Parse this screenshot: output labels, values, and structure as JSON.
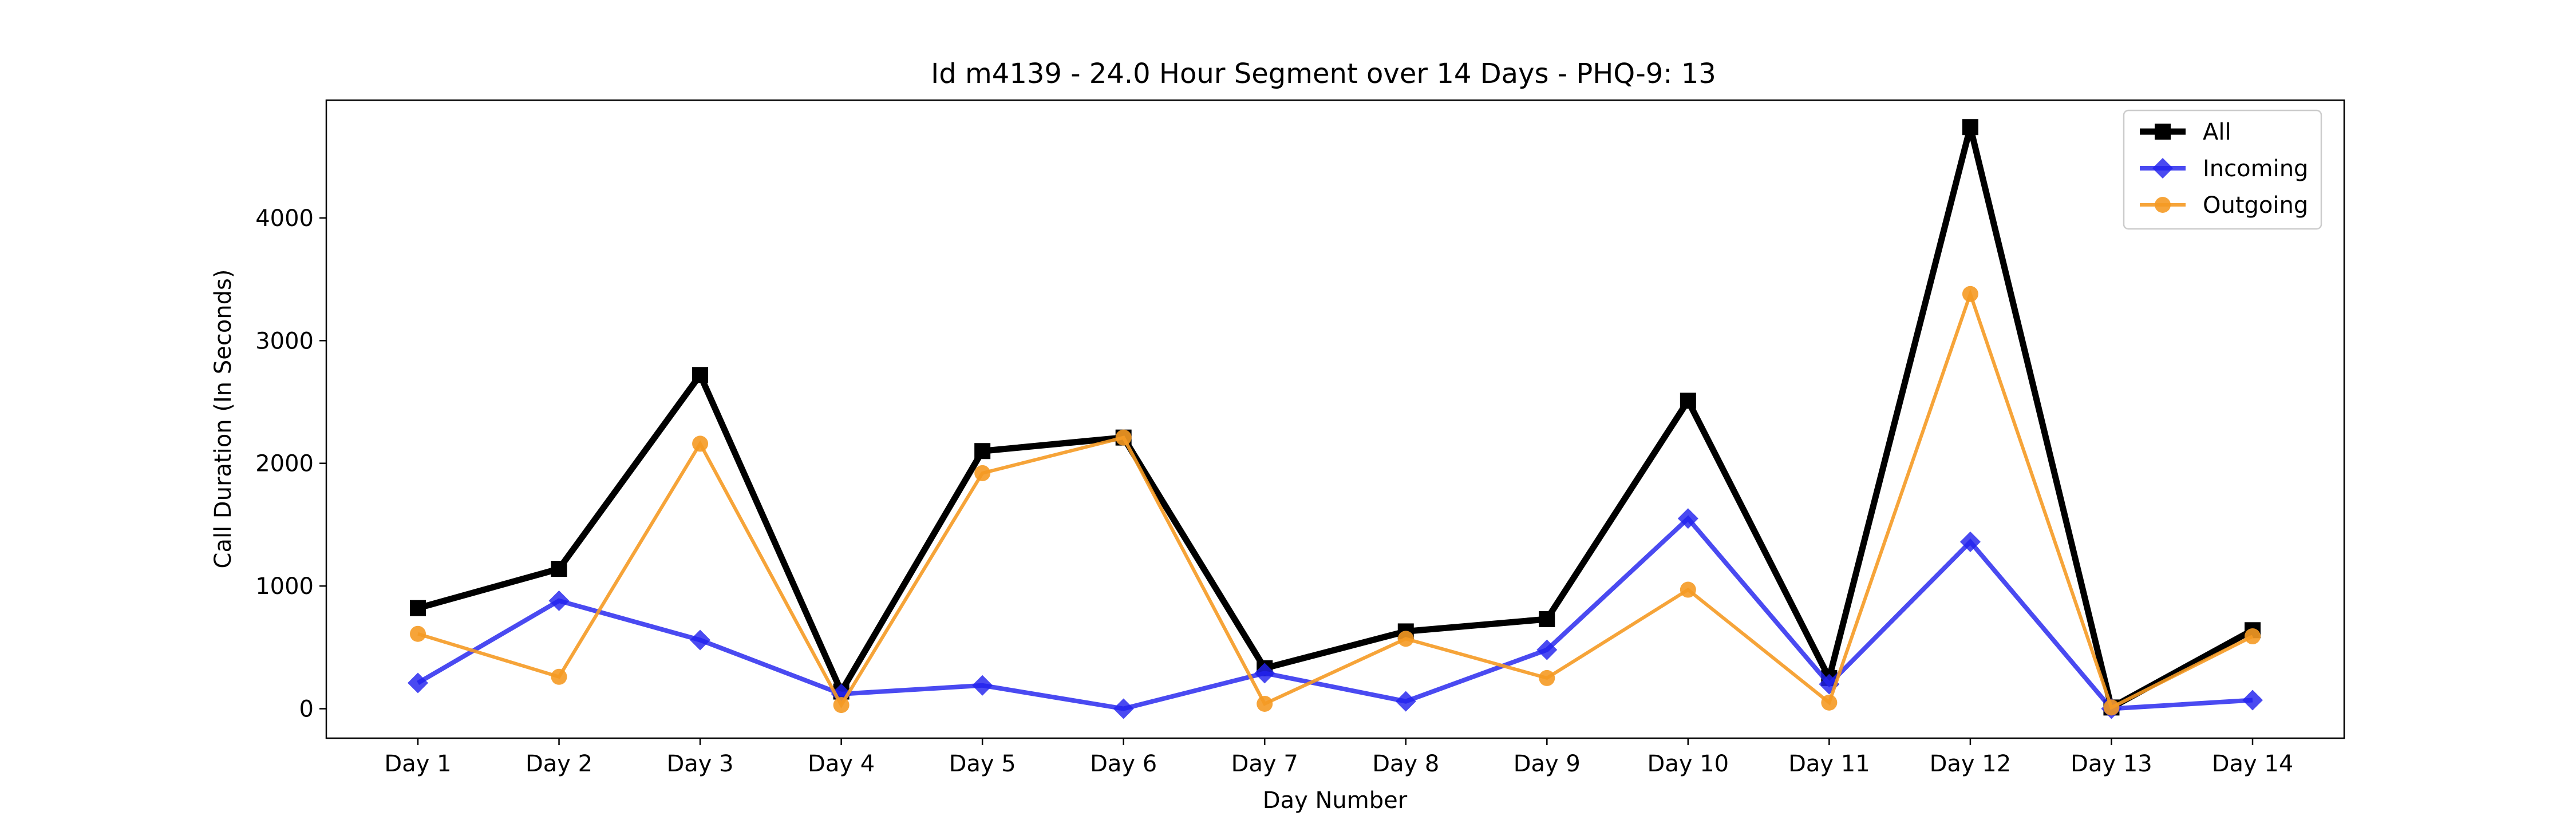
{
  "chart_data": {
    "type": "line",
    "title": "Id m4139 - 24.0 Hour Segment over 14 Days - PHQ-9: 13",
    "xlabel": "Day Number",
    "ylabel": "Call Duration (In Seconds)",
    "categories": [
      "Day 1",
      "Day 2",
      "Day 3",
      "Day 4",
      "Day 5",
      "Day 6",
      "Day 7",
      "Day 8",
      "Day 9",
      "Day 10",
      "Day 11",
      "Day 12",
      "Day 13",
      "Day 14"
    ],
    "ylim": [
      -240,
      4960
    ],
    "yticks": [
      0,
      1000,
      2000,
      3000,
      4000
    ],
    "grid": false,
    "legend_position": "top-right",
    "series": [
      {
        "name": "All",
        "color": "#000000",
        "marker": "square",
        "values": [
          820,
          1140,
          2720,
          140,
          2100,
          2210,
          330,
          630,
          730,
          2510,
          250,
          4740,
          10,
          640
        ]
      },
      {
        "name": "Incoming",
        "color": "#2222ee",
        "marker": "diamond",
        "values": [
          210,
          880,
          560,
          120,
          190,
          0,
          290,
          60,
          480,
          1550,
          200,
          1360,
          0,
          70
        ]
      },
      {
        "name": "Outgoing",
        "color": "#f59a23",
        "marker": "circle",
        "values": [
          610,
          260,
          2160,
          30,
          1920,
          2210,
          40,
          570,
          250,
          970,
          50,
          3380,
          10,
          590
        ]
      }
    ]
  }
}
